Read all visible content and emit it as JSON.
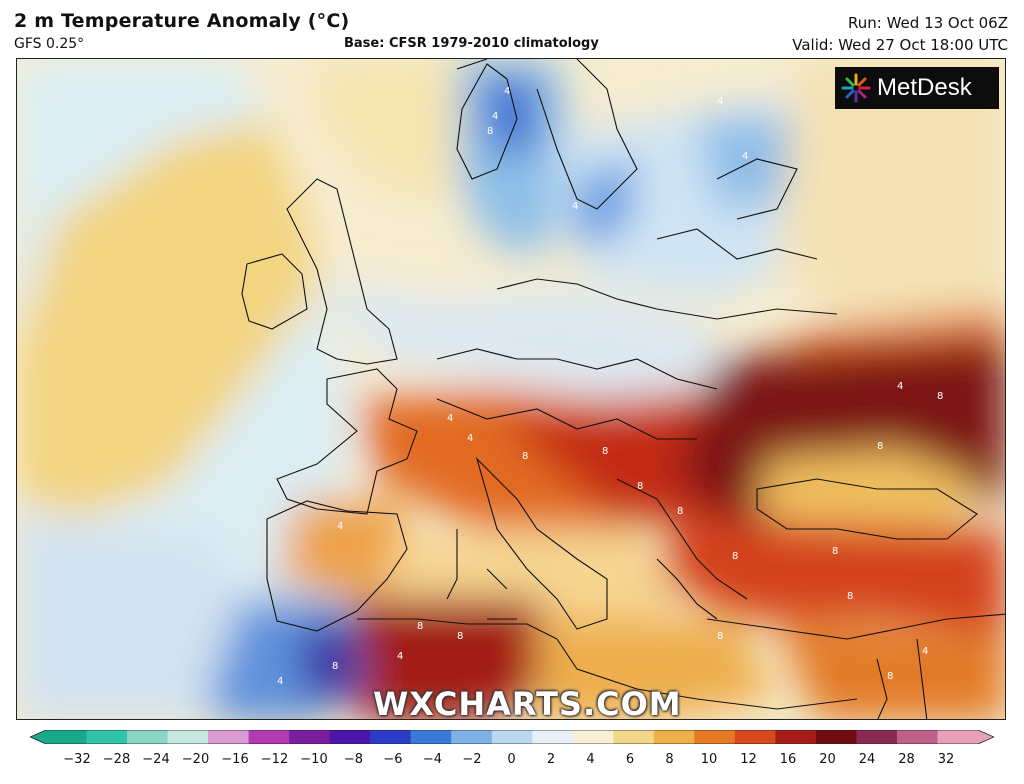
{
  "header": {
    "title": "2 m Temperature Anomaly (°C)",
    "model": "GFS 0.25°",
    "base": "Base: CFSR 1979-2010 climatology",
    "run": "Run: Wed 13 Oct 06Z",
    "valid": "Valid: Wed 27 Oct 18:00 UTC"
  },
  "logo": {
    "text": "MetDesk"
  },
  "watermark": "WXCHARTS.COM",
  "colorbar": {
    "ticks": [
      "−32",
      "−28",
      "−24",
      "−20",
      "−16",
      "−12",
      "−10",
      "−8",
      "−6",
      "−4",
      "−2",
      "0",
      "2",
      "4",
      "6",
      "8",
      "10",
      "12",
      "16",
      "20",
      "24",
      "28",
      "32"
    ],
    "colors": [
      "#1aa88a",
      "#2fc4a8",
      "#8ad6c6",
      "#c6e8df",
      "#d89ad0",
      "#b23ab0",
      "#7a1ea0",
      "#4b16a8",
      "#2a3cc8",
      "#3a7ad8",
      "#7fb0e6",
      "#bcd8f0",
      "#e6f0f6",
      "#f8f0d6",
      "#f2d78a",
      "#eeb04a",
      "#e47a26",
      "#d84a1e",
      "#a51c18",
      "#6e0c10",
      "#8a2a50",
      "#c0608a",
      "#e8a0b8"
    ]
  },
  "contour_labels": [
    "4",
    "4",
    "8",
    "4",
    "4",
    "4",
    "4",
    "4",
    "8",
    "8",
    "8",
    "4",
    "8",
    "8",
    "8",
    "8",
    "8",
    "8",
    "8",
    "4",
    "8",
    "8",
    "4",
    "4",
    "8",
    "4",
    "8"
  ]
}
